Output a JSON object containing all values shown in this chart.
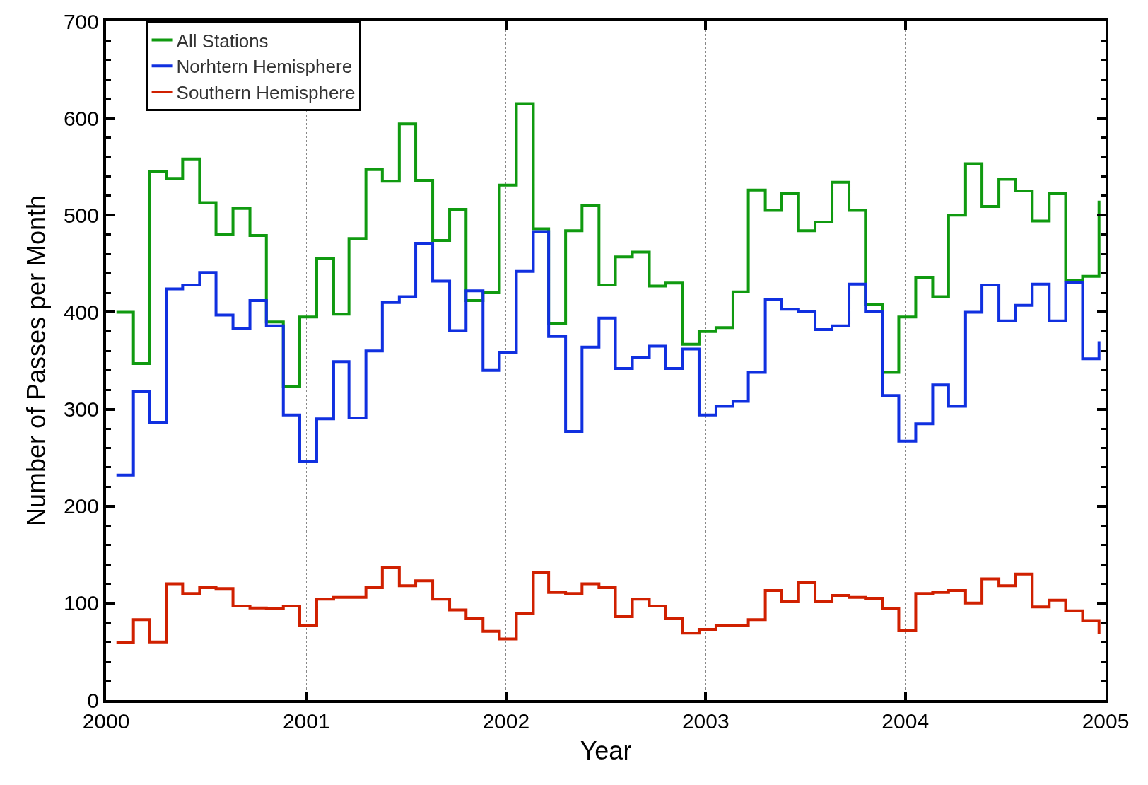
{
  "chart_data": {
    "type": "step",
    "xlabel": "Year",
    "ylabel": "Number of Passes per Month",
    "x": [
      "2000-01-20",
      "2000-02-20",
      "2000-03-20",
      "2000-04-20",
      "2000-05-20",
      "2000-06-20",
      "2000-07-20",
      "2000-08-20",
      "2000-09-20",
      "2000-10-20",
      "2000-11-20",
      "2000-12-20",
      "2001-01-20",
      "2001-02-20",
      "2001-03-20",
      "2001-04-20",
      "2001-05-20",
      "2001-06-20",
      "2001-07-20",
      "2001-08-20",
      "2001-09-20",
      "2001-10-20",
      "2001-11-20",
      "2001-12-20",
      "2002-01-20",
      "2002-02-20",
      "2002-03-20",
      "2002-04-20",
      "2002-05-20",
      "2002-06-20",
      "2002-07-20",
      "2002-08-20",
      "2002-09-20",
      "2002-10-20",
      "2002-11-20",
      "2002-12-20",
      "2003-01-20",
      "2003-02-20",
      "2003-03-20",
      "2003-04-20",
      "2003-05-20",
      "2003-06-20",
      "2003-07-20",
      "2003-08-20",
      "2003-09-20",
      "2003-10-20",
      "2003-11-20",
      "2003-12-20",
      "2004-01-20",
      "2004-02-20",
      "2004-03-20",
      "2004-04-20",
      "2004-05-20",
      "2004-06-20",
      "2004-07-20",
      "2004-08-20",
      "2004-09-20",
      "2004-10-20",
      "2004-11-20",
      "2004-12-20"
    ],
    "series": [
      {
        "name": "All Stations",
        "color": "#109a10",
        "values": [
          400,
          347,
          545,
          538,
          558,
          513,
          480,
          507,
          479,
          390,
          323,
          395,
          455,
          398,
          476,
          547,
          535,
          594,
          536,
          474,
          506,
          412,
          420,
          531,
          615,
          486,
          388,
          484,
          510,
          428,
          457,
          462,
          427,
          430,
          367,
          380,
          384,
          421,
          526,
          505,
          522,
          484,
          493,
          534,
          505,
          408,
          338,
          395,
          436,
          416,
          500,
          553,
          509,
          537,
          525,
          494,
          522,
          433,
          437,
          515
        ]
      },
      {
        "name": "Norhtern Hemisphere",
        "color": "#1030e0",
        "values": [
          232,
          318,
          286,
          424,
          428,
          441,
          397,
          383,
          412,
          386,
          294,
          246,
          290,
          349,
          291,
          360,
          410,
          416,
          471,
          432,
          381,
          422,
          340,
          358,
          442,
          483,
          375,
          277,
          364,
          394,
          342,
          353,
          365,
          342,
          362,
          294,
          303,
          308,
          338,
          413,
          403,
          401,
          382,
          386,
          429,
          401,
          314,
          267,
          285,
          325,
          303,
          400,
          428,
          391,
          407,
          429,
          391,
          431,
          352,
          370
        ]
      },
      {
        "name": "Southern Hemisphere",
        "color": "#d02000",
        "values": [
          59,
          83,
          60,
          120,
          110,
          116,
          115,
          97,
          95,
          94,
          97,
          77,
          104,
          106,
          106,
          116,
          137,
          118,
          123,
          104,
          93,
          84,
          71,
          63,
          89,
          132,
          111,
          110,
          120,
          116,
          86,
          104,
          97,
          84,
          69,
          73,
          77,
          77,
          83,
          113,
          102,
          121,
          102,
          108,
          106,
          105,
          94,
          72,
          110,
          111,
          113,
          100,
          125,
          118,
          130,
          96,
          103,
          92,
          82,
          68
        ]
      }
    ],
    "xlim": [
      "2000",
      "2005"
    ],
    "xticks": [
      "2000",
      "2001",
      "2002",
      "2003",
      "2004",
      "2005"
    ],
    "ylim": [
      0,
      700
    ],
    "yticks": [
      0,
      100,
      200,
      300,
      400,
      500,
      600,
      700
    ],
    "grid": "x",
    "legend": "top left",
    "line_style": "solid"
  }
}
